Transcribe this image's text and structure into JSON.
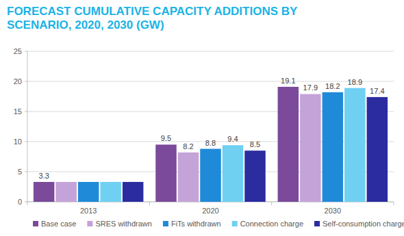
{
  "chart_data": {
    "type": "bar",
    "title": "FORECAST CUMULATIVE CAPACITY ADDITIONS BY SCENARIO, 2020, 2030 (GW)",
    "categories": [
      "2013",
      "2020",
      "2030"
    ],
    "series": [
      {
        "name": "Base case",
        "color": "#7b4a9b",
        "values": [
          3.3,
          9.5,
          19.1
        ],
        "value_labels": [
          "3.3",
          "9.5",
          "19.1"
        ]
      },
      {
        "name": "SRES withdrawn",
        "color": "#c4a3d8",
        "values": [
          3.3,
          8.2,
          17.9
        ],
        "value_labels": [
          null,
          "8.2",
          "17.9"
        ]
      },
      {
        "name": "FiTs withdrawn",
        "color": "#1f8ad8",
        "values": [
          3.3,
          8.8,
          18.2
        ],
        "value_labels": [
          null,
          "8.8",
          "18.2"
        ]
      },
      {
        "name": "Connection charge",
        "color": "#6fd0f2",
        "values": [
          3.3,
          9.4,
          18.9
        ],
        "value_labels": [
          null,
          "9.4",
          "18.9"
        ]
      },
      {
        "name": "Self-consumption charge",
        "color": "#2b2c9f",
        "values": [
          3.3,
          8.5,
          17.4
        ],
        "value_labels": [
          null,
          "8.5",
          "17.4"
        ]
      }
    ],
    "ylim": [
      0,
      25
    ],
    "yticks": [
      0,
      5,
      10,
      15,
      20,
      25
    ],
    "grid": true,
    "legend": "bottom",
    "data_labels": true
  }
}
